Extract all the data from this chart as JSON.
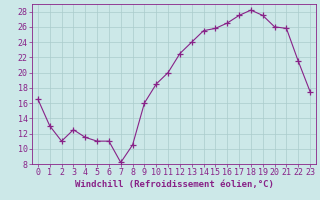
{
  "x": [
    0,
    1,
    2,
    3,
    4,
    5,
    6,
    7,
    8,
    9,
    10,
    11,
    12,
    13,
    14,
    15,
    16,
    17,
    18,
    19,
    20,
    21,
    22,
    23
  ],
  "y": [
    16.5,
    13,
    11,
    12.5,
    11.5,
    11,
    11,
    8.2,
    10.5,
    16,
    18.5,
    20,
    22.5,
    24,
    25.5,
    25.8,
    26.5,
    27.5,
    28.2,
    27.5,
    26,
    25.8,
    21.5,
    17.5
  ],
  "line_color": "#882288",
  "marker": "+",
  "marker_size": 4,
  "bg_color": "#cce8e8",
  "grid_color": "#aacccc",
  "xlabel": "Windchill (Refroidissement éolien,°C)",
  "xlabel_fontsize": 6.5,
  "tick_fontsize": 6.0,
  "xlim": [
    -0.5,
    23.5
  ],
  "ylim": [
    8,
    29
  ],
  "yticks": [
    8,
    10,
    12,
    14,
    16,
    18,
    20,
    22,
    24,
    26,
    28
  ],
  "xticks": [
    0,
    1,
    2,
    3,
    4,
    5,
    6,
    7,
    8,
    9,
    10,
    11,
    12,
    13,
    14,
    15,
    16,
    17,
    18,
    19,
    20,
    21,
    22,
    23
  ]
}
